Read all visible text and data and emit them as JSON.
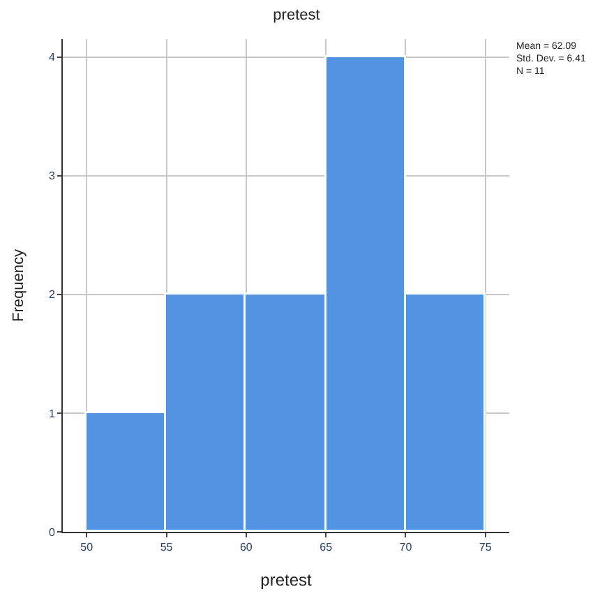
{
  "chart_data": {
    "type": "histogram",
    "title": "pretest",
    "xlabel": "pretest",
    "ylabel": "Frequency",
    "bins": [
      50,
      55,
      60,
      65,
      70,
      75
    ],
    "values": [
      1,
      2,
      2,
      4,
      2
    ],
    "color": "#5294e2",
    "xlim": [
      48.5,
      76.5
    ],
    "xticks": [
      50,
      55,
      60,
      65,
      70,
      75
    ],
    "ylim": [
      0,
      4.15
    ],
    "yticks": [
      0,
      1,
      2,
      3,
      4
    ],
    "grid": true,
    "annotations": [
      "Mean = 62.09",
      "Std. Dev. = 6.41",
      "N = 11"
    ]
  }
}
